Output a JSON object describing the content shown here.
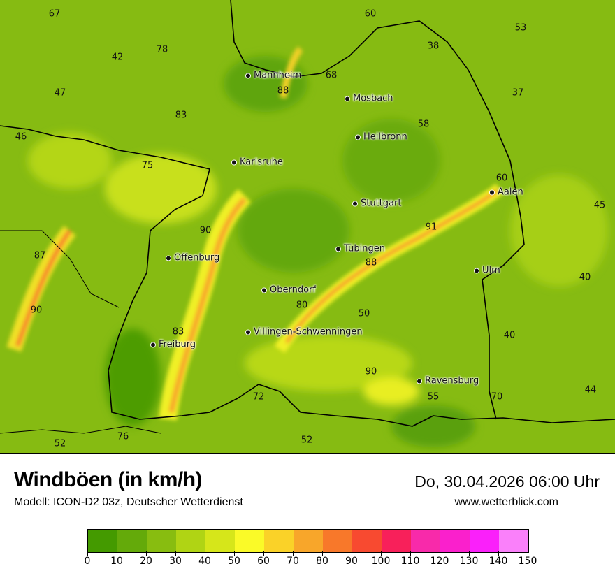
{
  "header": {
    "title": "Windböen (in km/h)",
    "subtitle": "Modell: ICON-D2 03z, Deutscher Wetterdienst",
    "datetime": "Do, 30.04.2026 06:00 Uhr",
    "website": "www.wetterblick.com"
  },
  "map": {
    "cities": [
      "Mannheim",
      "Mosbach",
      "Heilbronn",
      "Karlsruhe",
      "Stuttgart",
      "Aalen",
      "Tübingen",
      "Offenburg",
      "Ulm",
      "Oberndorf",
      "Villingen-Schwenningen",
      "Freiburg",
      "Ravensburg"
    ],
    "values": [
      "67",
      "60",
      "53",
      "38",
      "42",
      "78",
      "47",
      "88",
      "68",
      "37",
      "83",
      "58",
      "46",
      "75",
      "60",
      "45",
      "90",
      "91",
      "87",
      "88",
      "40",
      "90",
      "80",
      "50",
      "40",
      "83",
      "90",
      "55",
      "70",
      "44",
      "72",
      "52",
      "76",
      "52"
    ]
  },
  "legend": {
    "ticks": [
      "0",
      "10",
      "20",
      "30",
      "40",
      "50",
      "60",
      "70",
      "80",
      "90",
      "100",
      "110",
      "120",
      "130",
      "140",
      "150"
    ],
    "colors": [
      "#449a00",
      "#64aa0a",
      "#88bd10",
      "#b0d414",
      "#d6e61a",
      "#fafa28",
      "#fad228",
      "#f8a62a",
      "#f8782a",
      "#f84a30",
      "#f8205a",
      "#f82aaa",
      "#fa20cc",
      "#fa20fa",
      "#fa80fa"
    ]
  }
}
